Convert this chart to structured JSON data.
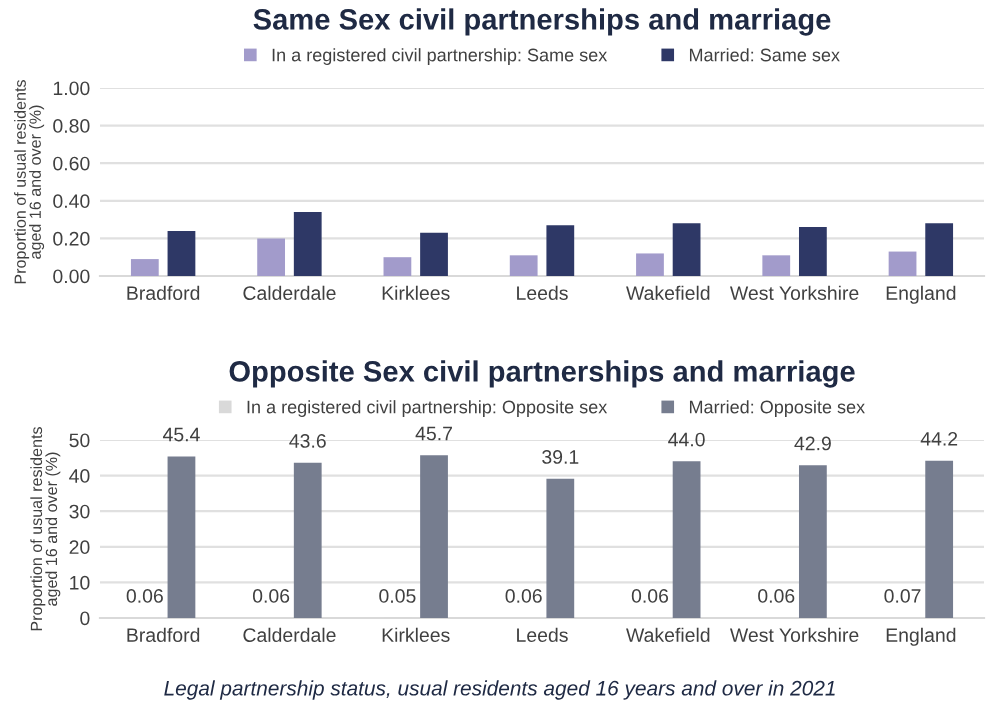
{
  "chart_data": [
    {
      "type": "bar",
      "title": "Same Sex civil partnerships and marriage",
      "ylabel": "Proportion of usual residents\naged 16 and over (%)",
      "categories": [
        "Bradford",
        "Calderdale",
        "Kirklees",
        "Leeds",
        "Wakefield",
        "West Yorkshire",
        "England"
      ],
      "series": [
        {
          "name": "In a registered civil partnership: Same sex",
          "color": "#a29bcb",
          "values": [
            0.09,
            0.2,
            0.1,
            0.11,
            0.12,
            0.11,
            0.13
          ]
        },
        {
          "name": "Married: Same sex",
          "color": "#2e3866",
          "values": [
            0.24,
            0.34,
            0.23,
            0.27,
            0.28,
            0.26,
            0.28
          ]
        }
      ],
      "ylim": [
        0,
        1.0
      ],
      "yticks": [
        {
          "value": 0,
          "label": "0.00"
        },
        {
          "value": 0.2,
          "label": "0.20"
        },
        {
          "value": 0.4,
          "label": "0.40"
        },
        {
          "value": 0.6,
          "label": "0.60"
        },
        {
          "value": 0.8,
          "label": "0.80"
        },
        {
          "value": 1.0,
          "label": "1.00"
        }
      ],
      "grid": "y",
      "legend": "top"
    },
    {
      "type": "bar",
      "title": "Opposite Sex civil partnerships and marriage",
      "ylabel": "Proportion of usual residents\naged 16 and over (%)",
      "categories": [
        "Bradford",
        "Calderdale",
        "Kirklees",
        "Leeds",
        "Wakefield",
        "West Yorkshire",
        "England"
      ],
      "series": [
        {
          "name": "In a registered civil partnership: Opposite sex",
          "color": "#d9d9d9",
          "values": [
            0.06,
            0.06,
            0.05,
            0.06,
            0.06,
            0.06,
            0.07
          ],
          "value_labels": [
            "0.06",
            "0.06",
            "0.05",
            "0.06",
            "0.06",
            "0.06",
            "0.07"
          ]
        },
        {
          "name": "Married: Opposite sex",
          "color": "#767d8f",
          "values": [
            45.4,
            43.6,
            45.7,
            39.1,
            44.0,
            42.9,
            44.2
          ],
          "value_labels": [
            "45.4",
            "43.6",
            "45.7",
            "39.1",
            "44.0",
            "42.9",
            "44.2"
          ]
        }
      ],
      "ylim": [
        0,
        50
      ],
      "yticks": [
        0,
        10,
        20,
        30,
        40,
        50
      ],
      "grid": "y",
      "legend": "top",
      "annotations": [
        "Legal partnership status, usual residents aged 16 years and over in 2021"
      ]
    }
  ]
}
